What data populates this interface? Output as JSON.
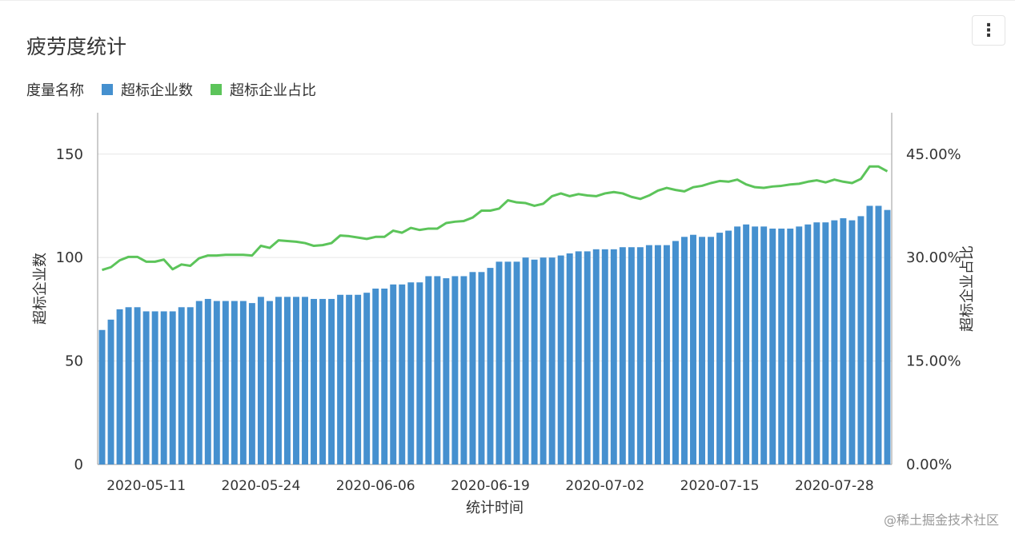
{
  "title": "疲劳度统计",
  "legend_title": "度量名称",
  "footer": "@稀土掘金技术社区",
  "colors": {
    "bar": "#4590cf",
    "line": "#5cc45a"
  },
  "chart_data": {
    "type": "bar+line",
    "title": "疲劳度统计",
    "xlabel": "统计时间",
    "ylabel": "超标企业数",
    "y2label": "超标企业占比",
    "start_date": "2020-05-06",
    "ylim": [
      0,
      170
    ],
    "y2lim": [
      0,
      51
    ],
    "yticks": [
      "0",
      "50",
      "100",
      "150"
    ],
    "ytick_values": [
      0,
      50,
      100,
      150
    ],
    "y2ticks": [
      "0.00%",
      "15.00%",
      "30.00%",
      "45.00%"
    ],
    "y2tick_values": [
      0,
      15,
      30,
      45
    ],
    "xticks": [
      "2020-05-11",
      "2020-05-24",
      "2020-06-06",
      "2020-06-19",
      "2020-07-02",
      "2020-07-15",
      "2020-07-28"
    ],
    "series": [
      {
        "name": "超标企业数",
        "type": "bar",
        "values": [
          65,
          70,
          75,
          76,
          76,
          74,
          74,
          74,
          74,
          76,
          76,
          79,
          80,
          79,
          79,
          79,
          79,
          78,
          81,
          79,
          81,
          81,
          81,
          81,
          80,
          80,
          80,
          82,
          82,
          82,
          83,
          85,
          85,
          87,
          87,
          88,
          88,
          91,
          91,
          90,
          91,
          91,
          93,
          93,
          95,
          98,
          98,
          98,
          100,
          99,
          100,
          100,
          101,
          102,
          103,
          103,
          104,
          104,
          104,
          105,
          105,
          105,
          106,
          106,
          106,
          108,
          110,
          111,
          110,
          110,
          112,
          113,
          115,
          116,
          115,
          115,
          114,
          114,
          114,
          115,
          116,
          117,
          117,
          118,
          119,
          118,
          120,
          125,
          125,
          123
        ]
      },
      {
        "name": "超标企业占比",
        "type": "line",
        "unit": "%",
        "values": [
          28.2,
          28.6,
          29.6,
          30.1,
          30.1,
          29.4,
          29.4,
          29.7,
          28.3,
          29.0,
          28.8,
          29.9,
          30.3,
          30.3,
          30.4,
          30.4,
          30.4,
          30.3,
          31.7,
          31.4,
          32.5,
          32.4,
          32.3,
          32.1,
          31.7,
          31.8,
          32.1,
          33.2,
          33.1,
          32.9,
          32.7,
          33.0,
          33.0,
          33.9,
          33.6,
          34.3,
          34.0,
          34.2,
          34.2,
          35.0,
          35.2,
          35.3,
          35.8,
          36.8,
          36.8,
          37.1,
          38.3,
          38.0,
          37.9,
          37.5,
          37.8,
          38.9,
          39.3,
          38.9,
          39.2,
          39.0,
          38.9,
          39.3,
          39.5,
          39.3,
          38.8,
          38.5,
          39.0,
          39.7,
          40.1,
          39.8,
          39.6,
          40.2,
          40.4,
          40.8,
          41.1,
          41.0,
          41.3,
          40.6,
          40.2,
          40.1,
          40.3,
          40.4,
          40.6,
          40.7,
          41.0,
          41.2,
          40.9,
          41.3,
          41.0,
          40.8,
          41.4,
          43.2,
          43.2,
          42.5
        ]
      }
    ]
  }
}
